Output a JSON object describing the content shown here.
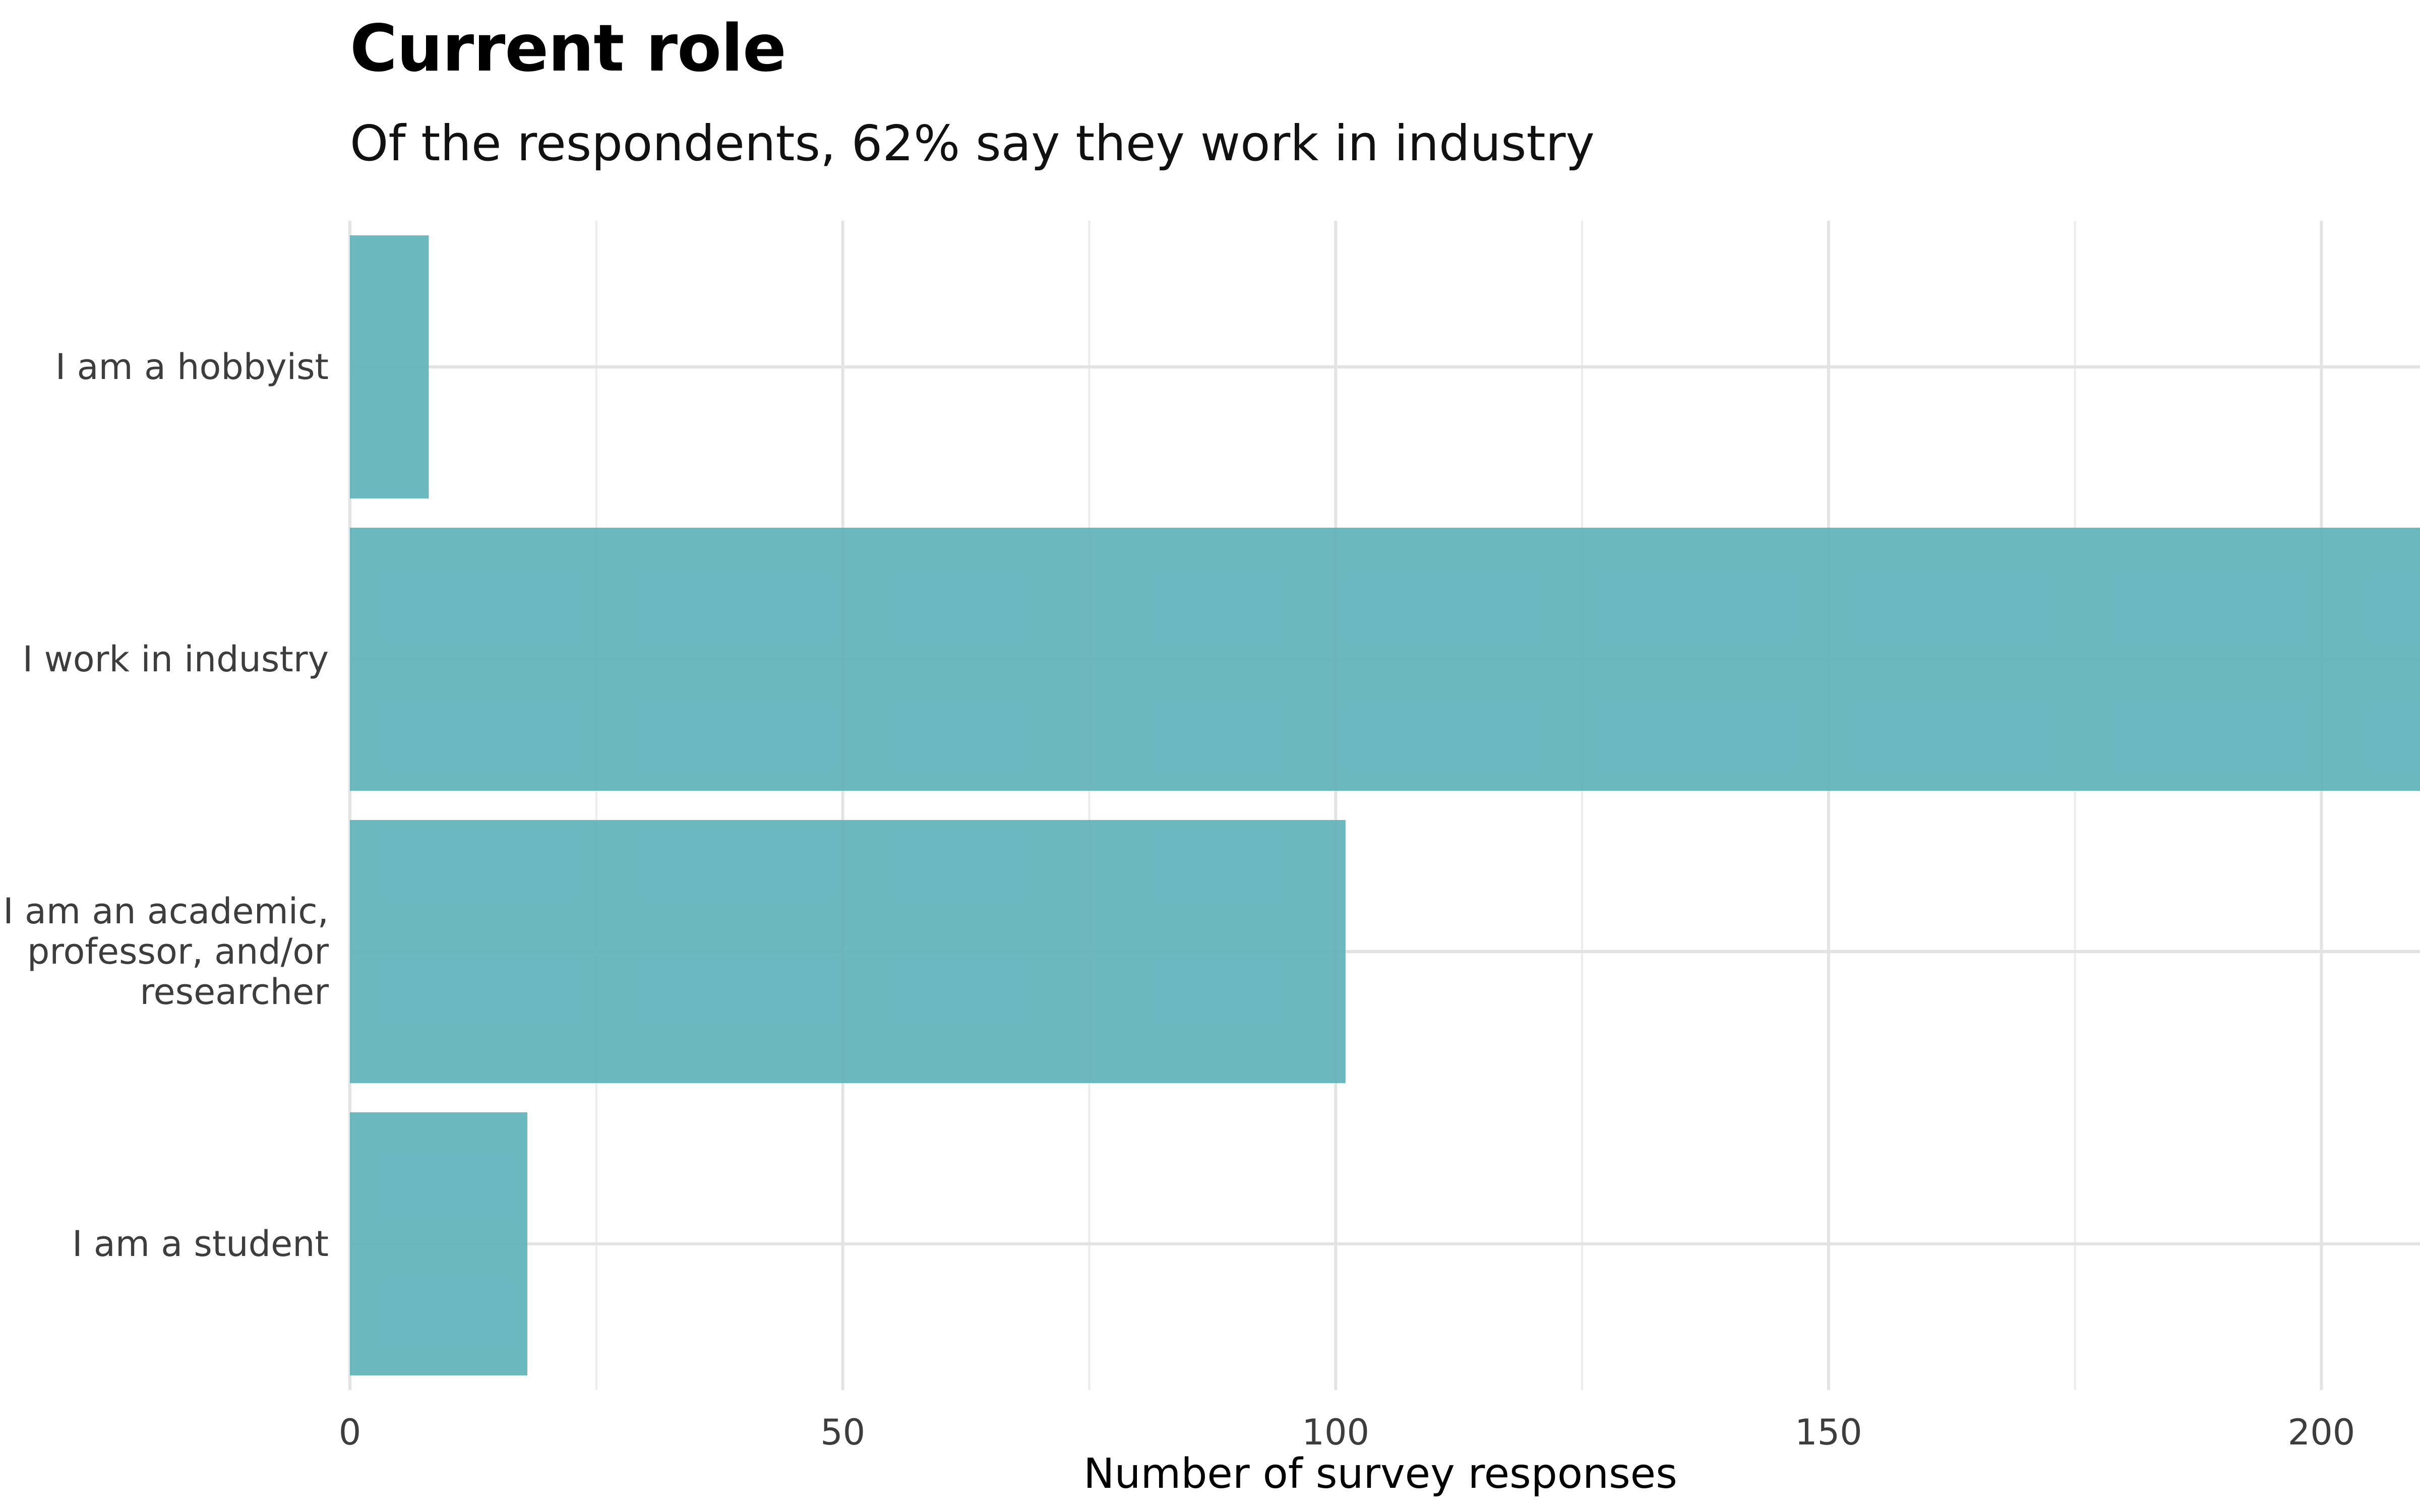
{
  "chart_data": {
    "type": "bar",
    "orientation": "horizontal",
    "title": "Current role",
    "subtitle": "Of the respondents, 62% say they work in industry",
    "xlabel": "Number of survey responses",
    "ylabel": "",
    "categories": [
      [
        "I am a hobbyist"
      ],
      [
        "I work in industry"
      ],
      [
        "I am an academic,",
        "professor, and/or",
        "researcher"
      ],
      [
        "I am a student"
      ]
    ],
    "values": [
      8,
      211,
      101,
      18
    ],
    "x_ticks": [
      0,
      50,
      100,
      150,
      200
    ],
    "xlim": [
      0,
      210
    ],
    "grid": true,
    "bar_color": "#5fb2ba"
  }
}
